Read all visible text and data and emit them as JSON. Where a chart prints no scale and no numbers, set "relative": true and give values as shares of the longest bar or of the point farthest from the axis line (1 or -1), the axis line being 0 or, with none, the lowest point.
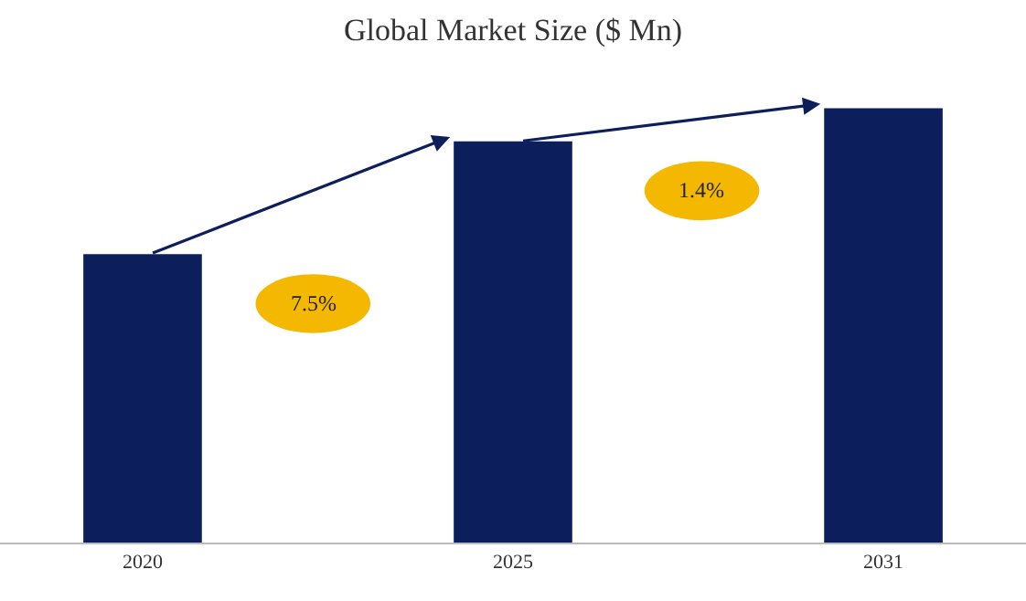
{
  "chart_data": {
    "type": "bar",
    "title": "Global Market Size ($ Mn)",
    "categories": [
      "2020",
      "2025",
      "2031"
    ],
    "values": [
      0.664,
      0.924,
      1
    ],
    "color": "#0c1f5c",
    "relative": true,
    "grid": false,
    "annotations": [
      "7.5%",
      "1.4%"
    ]
  }
}
